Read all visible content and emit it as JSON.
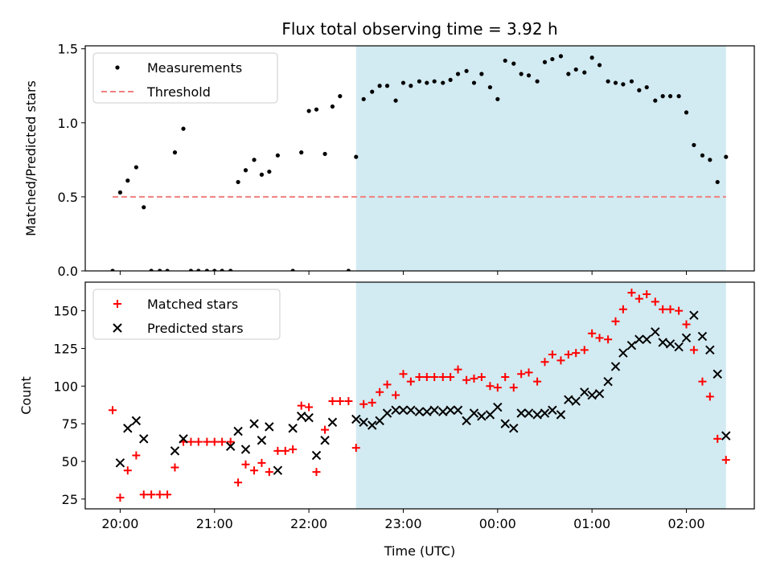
{
  "chart_data": {
    "title": "Flux total observing time = 3.92 h",
    "xlabel": "Time (UTC)",
    "x_ticks": [
      {
        "label": "20:00",
        "hour": 20.0
      },
      {
        "label": "21:00",
        "hour": 21.0
      },
      {
        "label": "22:00",
        "hour": 22.0
      },
      {
        "label": "23:00",
        "hour": 23.0
      },
      {
        "label": "00:00",
        "hour": 24.0
      },
      {
        "label": "01:00",
        "hour": 25.0
      },
      {
        "label": "02:00",
        "hour": 26.0
      }
    ],
    "xlim": [
      19.63,
      26.72
    ],
    "observing_window": {
      "start": 22.5,
      "end": 26.42,
      "color": "#add8e6"
    },
    "panels": [
      {
        "type": "scatter",
        "ylabel": "Matched/Predicted stars",
        "ylim": [
          0,
          1.52
        ],
        "y_ticks": [
          0.0,
          0.5,
          1.0,
          1.5
        ],
        "y_tick_labels": [
          "0.0",
          "0.5",
          "1.0",
          "1.5"
        ],
        "legend": {
          "position": "top-left",
          "entries": [
            "Measurements",
            "Threshold"
          ]
        },
        "threshold": {
          "name": "Threshold",
          "value": 0.5,
          "x_start": 19.92,
          "x_end": 26.42,
          "color": "#f08080"
        },
        "series": [
          {
            "name": "Measurements",
            "marker": "dot",
            "color": "#000000",
            "x": [
              19.92,
              20.0,
              20.08,
              20.17,
              20.25,
              20.33,
              20.42,
              20.5,
              20.58,
              20.67,
              20.75,
              20.83,
              20.92,
              21.0,
              21.08,
              21.17,
              21.25,
              21.33,
              21.42,
              21.5,
              21.58,
              21.67,
              21.83,
              21.92,
              22.0,
              22.08,
              22.17,
              22.25,
              22.33,
              22.42,
              22.5,
              22.58,
              22.67,
              22.75,
              22.83,
              22.92,
              23.0,
              23.08,
              23.17,
              23.25,
              23.33,
              23.42,
              23.5,
              23.58,
              23.67,
              23.75,
              23.83,
              23.92,
              24.0,
              24.08,
              24.17,
              24.25,
              24.33,
              24.42,
              24.5,
              24.58,
              24.67,
              24.75,
              24.83,
              24.92,
              25.0,
              25.08,
              25.17,
              25.25,
              25.33,
              25.42,
              25.5,
              25.58,
              25.67,
              25.75,
              25.83,
              25.92,
              26.0,
              26.08,
              26.17,
              26.25,
              26.33,
              26.42
            ],
            "y": [
              0.0,
              0.53,
              0.61,
              0.7,
              0.43,
              0.0,
              0.0,
              0.0,
              0.8,
              0.96,
              0.0,
              0.0,
              0.0,
              0.0,
              0.0,
              0.0,
              0.6,
              0.68,
              0.75,
              0.65,
              0.67,
              0.78,
              0.0,
              0.8,
              1.08,
              1.09,
              0.79,
              1.11,
              1.18,
              0.0,
              0.77,
              1.16,
              1.21,
              1.25,
              1.25,
              1.15,
              1.27,
              1.25,
              1.28,
              1.27,
              1.28,
              1.27,
              1.29,
              1.33,
              1.35,
              1.27,
              1.33,
              1.24,
              1.16,
              1.42,
              1.4,
              1.33,
              1.32,
              1.28,
              1.41,
              1.43,
              1.45,
              1.33,
              1.36,
              1.34,
              1.44,
              1.39,
              1.28,
              1.27,
              1.26,
              1.28,
              1.22,
              1.24,
              1.15,
              1.18,
              1.18,
              1.18,
              1.07,
              0.85,
              0.78,
              0.75,
              0.6,
              0.77
            ]
          }
        ]
      },
      {
        "type": "scatter",
        "ylabel": "Count",
        "ylim": [
          18.5,
          169
        ],
        "y_ticks": [
          25,
          50,
          75,
          100,
          125,
          150
        ],
        "y_tick_labels": [
          "25",
          "50",
          "75",
          "100",
          "125",
          "150"
        ],
        "legend": {
          "position": "top-left",
          "entries": [
            "Matched stars",
            "Predicted stars"
          ]
        },
        "series": [
          {
            "name": "Matched stars",
            "marker": "plus",
            "color": "#ff0000",
            "x": [
              19.92,
              20.0,
              20.08,
              20.17,
              20.25,
              20.33,
              20.42,
              20.5,
              20.58,
              20.67,
              20.75,
              20.83,
              20.92,
              21.0,
              21.08,
              21.17,
              21.25,
              21.33,
              21.42,
              21.5,
              21.58,
              21.67,
              21.75,
              21.83,
              21.92,
              22.0,
              22.08,
              22.17,
              22.25,
              22.33,
              22.42,
              22.5,
              22.58,
              22.67,
              22.75,
              22.83,
              22.92,
              23.0,
              23.08,
              23.17,
              23.25,
              23.33,
              23.42,
              23.5,
              23.58,
              23.67,
              23.75,
              23.83,
              23.92,
              24.0,
              24.08,
              24.17,
              24.25,
              24.33,
              24.42,
              24.5,
              24.58,
              24.67,
              24.75,
              24.83,
              24.92,
              25.0,
              25.08,
              25.17,
              25.25,
              25.33,
              25.42,
              25.5,
              25.58,
              25.67,
              25.75,
              25.83,
              25.92,
              26.0,
              26.08,
              26.17,
              26.25,
              26.33,
              26.42
            ],
            "y": [
              84,
              26,
              44,
              54,
              28,
              28,
              28,
              28,
              46,
              63,
              63,
              63,
              63,
              63,
              63,
              63,
              36,
              48,
              44,
              49,
              43,
              57,
              57,
              58,
              87,
              86,
              43,
              71,
              90,
              90,
              90,
              59,
              88,
              89,
              96,
              101,
              94,
              108,
              103,
              106,
              106,
              106,
              106,
              106,
              111,
              104,
              105,
              106,
              100,
              99,
              106,
              99,
              108,
              109,
              103,
              116,
              121,
              117,
              121,
              122,
              124,
              135,
              132,
              131,
              143,
              151,
              162,
              158,
              161,
              156,
              151,
              151,
              150,
              141,
              124,
              103,
              93,
              65,
              51
            ]
          },
          {
            "name": "Predicted stars",
            "marker": "cross",
            "color": "#000000",
            "x": [
              20.0,
              20.08,
              20.17,
              20.25,
              20.58,
              20.67,
              21.17,
              21.25,
              21.33,
              21.42,
              21.5,
              21.58,
              21.67,
              21.83,
              21.92,
              22.0,
              22.08,
              22.17,
              22.25,
              22.5,
              22.58,
              22.67,
              22.75,
              22.83,
              22.92,
              23.0,
              23.08,
              23.17,
              23.25,
              23.33,
              23.42,
              23.5,
              23.58,
              23.67,
              23.75,
              23.83,
              23.92,
              24.0,
              24.08,
              24.17,
              24.25,
              24.33,
              24.42,
              24.5,
              24.58,
              24.67,
              24.75,
              24.83,
              24.92,
              25.0,
              25.08,
              25.17,
              25.25,
              25.33,
              25.42,
              25.5,
              25.58,
              25.67,
              25.75,
              25.83,
              25.92,
              26.0,
              26.08,
              26.17,
              26.25,
              26.33,
              26.42
            ],
            "y": [
              49,
              72,
              77,
              65,
              57,
              65,
              60,
              70,
              58,
              75,
              64,
              73,
              44,
              72,
              80,
              79,
              54,
              64,
              76,
              78,
              76,
              74,
              77,
              82,
              84,
              84,
              84,
              83,
              83,
              84,
              83,
              84,
              84,
              77,
              82,
              80,
              81,
              86,
              75,
              72,
              82,
              82,
              81,
              82,
              84,
              81,
              91,
              90,
              96,
              94,
              95,
              103,
              113,
              122,
              127,
              131,
              131,
              136,
              129,
              128,
              126,
              132,
              147,
              133,
              124,
              108,
              67
            ]
          }
        ]
      }
    ]
  }
}
